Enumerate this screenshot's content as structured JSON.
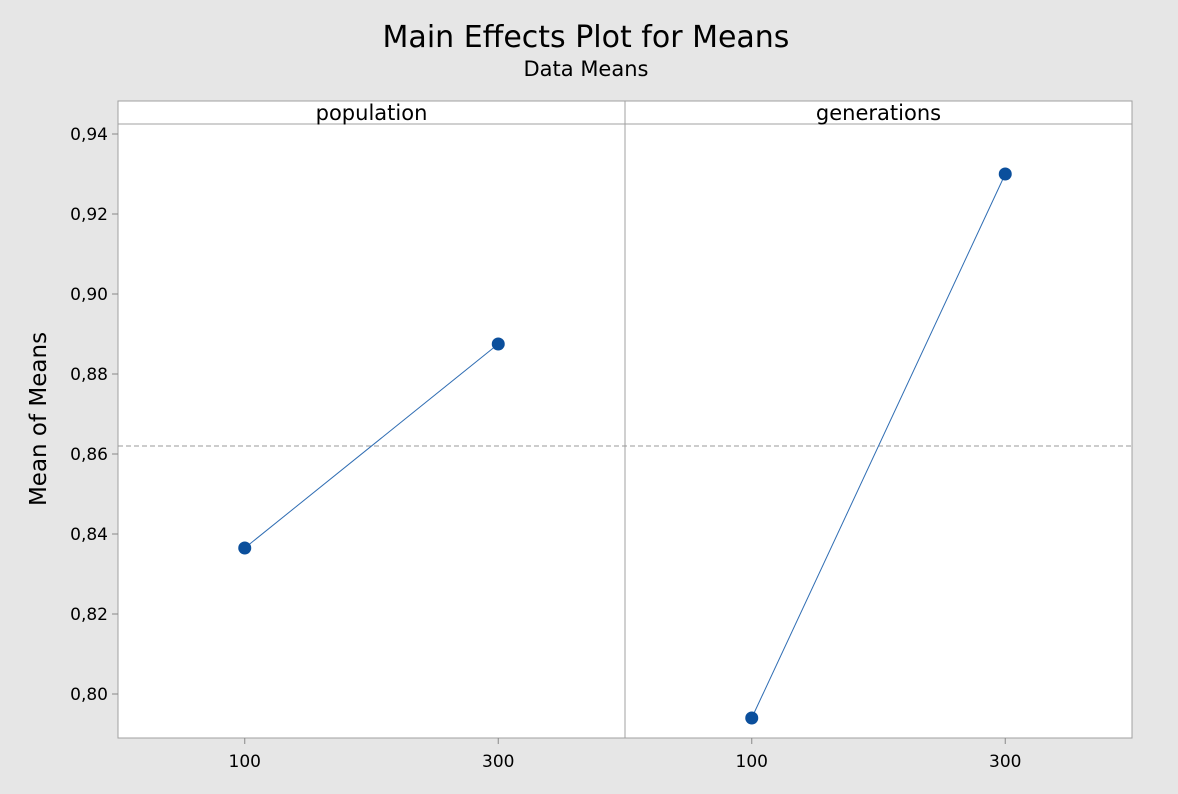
{
  "chart_data": {
    "type": "line",
    "title": "Main Effects Plot for Means",
    "subtitle": "Data Means",
    "ylabel": "Mean of Means",
    "ylim": [
      0.789,
      0.9425
    ],
    "yticks": [
      0.8,
      0.82,
      0.84,
      0.86,
      0.88,
      0.9,
      0.92,
      0.94
    ],
    "ytick_labels": [
      "0,80",
      "0,82",
      "0,84",
      "0,86",
      "0,88",
      "0,90",
      "0,92",
      "0,94"
    ],
    "grand_mean": 0.862,
    "line_color": "#2f6db3",
    "point_color": "#0b4f9c",
    "reference_line_color": "#999999",
    "panels": [
      {
        "label": "population",
        "categories": [
          "100",
          "300"
        ],
        "values": [
          0.8365,
          0.8875
        ]
      },
      {
        "label": "generations",
        "categories": [
          "100",
          "300"
        ],
        "values": [
          0.794,
          0.93
        ]
      }
    ]
  }
}
